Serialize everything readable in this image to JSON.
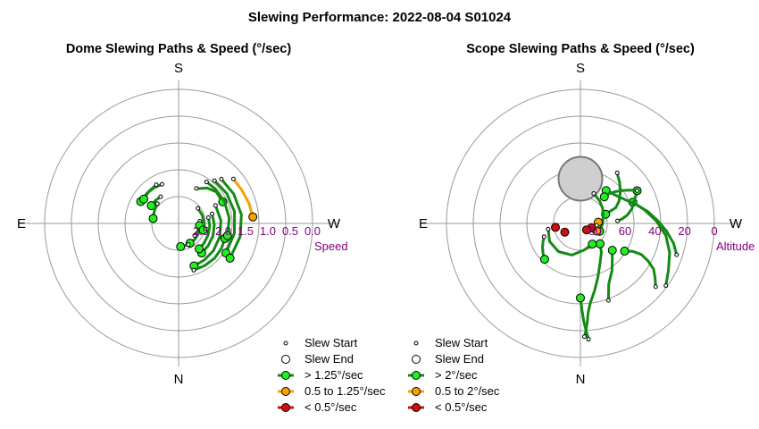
{
  "title": "Slewing Performance: 2022-08-04 S01024",
  "colors": {
    "fast": "#138a13",
    "medium": "#f5a300",
    "slow": "#cc1010",
    "end_fill": "#22ee22",
    "grid": "#999999",
    "axis_label": "#800080",
    "obstruction_fill": "#cfcfcf",
    "obstruction_stroke": "#777777"
  },
  "legend_common": {
    "start": "Slew Start",
    "end": "Slew End"
  },
  "chart_data": [
    {
      "type": "polar-paths",
      "title": "Dome Slewing Paths & Speed (°/sec)",
      "cardinals": {
        "top": "S",
        "right": "W",
        "bottom": "N",
        "left": "E"
      },
      "radial_label": "Speed",
      "radial_ticks": [
        "2.5",
        "2.0",
        "1.5",
        "1.0",
        "0.5",
        "0.0"
      ],
      "radial_tick_values": [
        2.5,
        2.0,
        1.5,
        1.0,
        0.5,
        0.0
      ],
      "radial_axis": {
        "value_at_center": 3.0,
        "value_at_edge": 0.0
      },
      "azimuth_reference": "S at top, W right, N bottom, E left",
      "legend": [
        {
          "label": "> 1.25°/sec",
          "color": "fast"
        },
        {
          "label": "0.5 to 1.25°/sec",
          "color": "medium"
        },
        {
          "label": "< 0.5°/sec",
          "color": "slow"
        }
      ],
      "paths": [
        {
          "az": [
            -84,
            -100,
            -116,
            -134,
            -150
          ],
          "r": [
            2.52,
            2.51,
            2.5,
            2.49,
            2.49
          ],
          "speed": "fast"
        },
        {
          "az": [
            -64,
            -86,
            -108,
            -128,
            -145,
            -160
          ],
          "r": [
            2.08,
            2.05,
            2.03,
            2.01,
            2.0,
            1.99
          ],
          "speed": "fast"
        },
        {
          "az": [
            -74,
            -92,
            -110,
            -127,
            -142
          ],
          "r": [
            2.22,
            2.2,
            2.18,
            2.17,
            2.16
          ],
          "speed": "fast"
        },
        {
          "az": [
            -79,
            -95,
            -112,
            -128,
            -141
          ],
          "r": [
            2.32,
            2.3,
            2.29,
            2.28,
            2.27
          ],
          "speed": "fast"
        },
        {
          "az": [
            -162,
            -148,
            -134,
            -120,
            -108
          ],
          "r": [
            1.9,
            1.89,
            1.88,
            1.89,
            1.91
          ],
          "speed": "fast"
        },
        {
          "az": [
            -127,
            -115,
            -104,
            -96
          ],
          "r": [
            2.55,
            2.54,
            2.53,
            2.53
          ],
          "speed": "fast"
        },
        {
          "az": [
            -40,
            -58,
            -78,
            -100,
            -122
          ],
          "r": [
            1.75,
            1.73,
            1.72,
            1.73,
            1.75
          ],
          "speed": "fast"
        },
        {
          "az": [
            -44,
            -62,
            -82,
            -102,
            -124
          ],
          "r": [
            1.62,
            1.6,
            1.58,
            1.59,
            1.61
          ],
          "speed": "fast"
        },
        {
          "az": [
            -27,
            -30,
            -39,
            -50,
            -64
          ],
          "r": [
            2.12,
            2.1,
            1.98,
            1.9,
            1.9
          ],
          "speed": "fast"
        },
        {
          "az": [
            -52,
            -71,
            -89,
            -105
          ],
          "r": [
            2.45,
            2.44,
            2.43,
            2.43
          ],
          "speed": "fast"
        },
        {
          "az": [
            -34,
            -47,
            -64,
            -84,
            -104
          ],
          "r": [
            1.88,
            1.87,
            1.86,
            1.86,
            1.87
          ],
          "speed": "fast"
        },
        {
          "az": [
            34,
            45,
            57
          ],
          "r": [
            2.28,
            2.27,
            2.27
          ],
          "speed": "fast"
        },
        {
          "az": [
            23,
            35,
            47,
            60
          ],
          "r": [
            2.05,
            2.03,
            2.02,
            2.02
          ],
          "speed": "fast"
        },
        {
          "az": [
            47,
            58,
            68,
            79
          ],
          "r": [
            2.35,
            2.38,
            2.4,
            2.42
          ],
          "speed": "fast"
        },
        {
          "az": [
            30,
            43,
            55
          ],
          "r": [
            2.0,
            2.02,
            2.05
          ],
          "speed": "fast"
        },
        {
          "az": [
            -155,
            -165,
            -175
          ],
          "r": [
            2.48,
            2.48,
            2.48
          ],
          "speed": "fast"
        },
        {
          "az": [
            -51,
            -62,
            -74,
            -85
          ],
          "r": [
            1.42,
            1.4,
            1.36,
            1.33
          ],
          "speed": "medium"
        }
      ]
    },
    {
      "type": "polar-paths",
      "title": "Scope Slewing Paths & Speed (°/sec)",
      "cardinals": {
        "top": "S",
        "right": "W",
        "bottom": "N",
        "left": "E"
      },
      "radial_label": "Altitude",
      "radial_ticks": [
        "80",
        "60",
        "40",
        "20",
        "0"
      ],
      "radial_tick_values": [
        80,
        60,
        40,
        20,
        0
      ],
      "radial_axis": {
        "value_at_center": 90,
        "value_at_edge": 0
      },
      "azimuth_reference": "S at top, W right, N bottom, E left",
      "obstruction": {
        "az_deg": 0,
        "alt_deg": 60,
        "radius_alt_deg": 14.7
      },
      "legend": [
        {
          "label": "> 2°/sec",
          "color": "fast"
        },
        {
          "label": "0.5 to 2°/sec",
          "color": "medium"
        },
        {
          "label": "< 0.5°/sec",
          "color": "slow"
        }
      ],
      "paths": [
        {
          "az": [
            -178,
            -177,
            -176,
            -175,
            -173,
            -168,
            -162,
            -154,
            -144,
            -136
          ],
          "alt": [
            14,
            18,
            24,
            30,
            36,
            44,
            52,
            60,
            66,
            71
          ],
          "speed": "fast"
        },
        {
          "az": [
            -176,
            -177,
            -178,
            -179,
            180
          ],
          "alt": [
            12,
            18,
            24,
            32,
            40
          ],
          "speed": "fast"
        },
        {
          "az": [
            -160,
            -155,
            -146,
            -138,
            -130
          ],
          "alt": [
            35,
            45,
            52,
            58,
            62
          ],
          "speed": "fast"
        },
        {
          "az": [
            -130,
            -126,
            -122,
            -119,
            -117,
            -118,
            -122
          ],
          "alt": [
            24,
            28,
            32,
            38,
            44,
            50,
            55
          ],
          "speed": "fast"
        },
        {
          "az": [
            -126,
            -118,
            -108,
            -98,
            -88,
            -78,
            -68
          ],
          "alt": [
            19,
            23,
            27,
            32,
            39,
            46,
            52
          ],
          "speed": "fast"
        },
        {
          "az": [
            -108,
            -102,
            -95,
            -88,
            -80,
            -72,
            -62,
            -50,
            -38
          ],
          "alt": [
            22,
            26,
            32,
            38,
            44,
            50,
            56,
            60,
            62
          ],
          "speed": "fast"
        },
        {
          "az": [
            -36,
            -44,
            -52,
            -60,
            -66,
            -70
          ],
          "alt": [
            48,
            52,
            56,
            60,
            64,
            72
          ],
          "speed": "fast"
        },
        {
          "az": [
            -86,
            -84,
            -80,
            -74,
            -66,
            -60
          ],
          "alt": [
            65,
            62,
            58,
            54,
            50,
            46
          ],
          "speed": "fast"
        },
        {
          "az": [
            -60,
            -56,
            -52,
            -48,
            -44,
            -42
          ],
          "alt": [
            46,
            50,
            54,
            58,
            62,
            66
          ],
          "speed": "fast"
        },
        {
          "az": [
            -24,
            -40,
            -56,
            -72,
            -90,
            -112
          ],
          "alt": [
            68,
            70,
            72,
            74,
            75,
            76
          ],
          "speed": "fast"
        },
        {
          "az": [
            110,
            116,
            122,
            128,
            135
          ],
          "alt": [
            64,
            62,
            60,
            58,
            56
          ],
          "speed": "fast"
        },
        {
          "az": [
            100,
            120,
            142,
            165,
            -172,
            -150
          ],
          "alt": [
            68,
            66,
            66,
            68,
            72,
            74
          ],
          "speed": "fast"
        },
        {
          "az": [
            -92,
            -89,
            -86
          ],
          "alt": [
            79,
            79,
            78
          ],
          "speed": "medium"
        },
        {
          "az": [
            -97,
            -105,
            -115
          ],
          "alt": [
            79,
            79,
            78
          ],
          "speed": "medium"
        },
        {
          "az": [
            95,
            97,
            99
          ],
          "alt": [
            74,
            74,
            73
          ],
          "speed": "slow"
        },
        {
          "az": [
            115,
            117,
            119
          ],
          "alt": [
            78,
            78,
            78
          ],
          "speed": "slow"
        },
        {
          "az": [
            -108,
            -110,
            -112
          ],
          "alt": [
            82,
            82,
            82
          ],
          "speed": "slow"
        },
        {
          "az": [
            -128,
            -132,
            -136
          ],
          "alt": [
            84,
            84,
            84
          ],
          "speed": "slow"
        }
      ]
    }
  ]
}
